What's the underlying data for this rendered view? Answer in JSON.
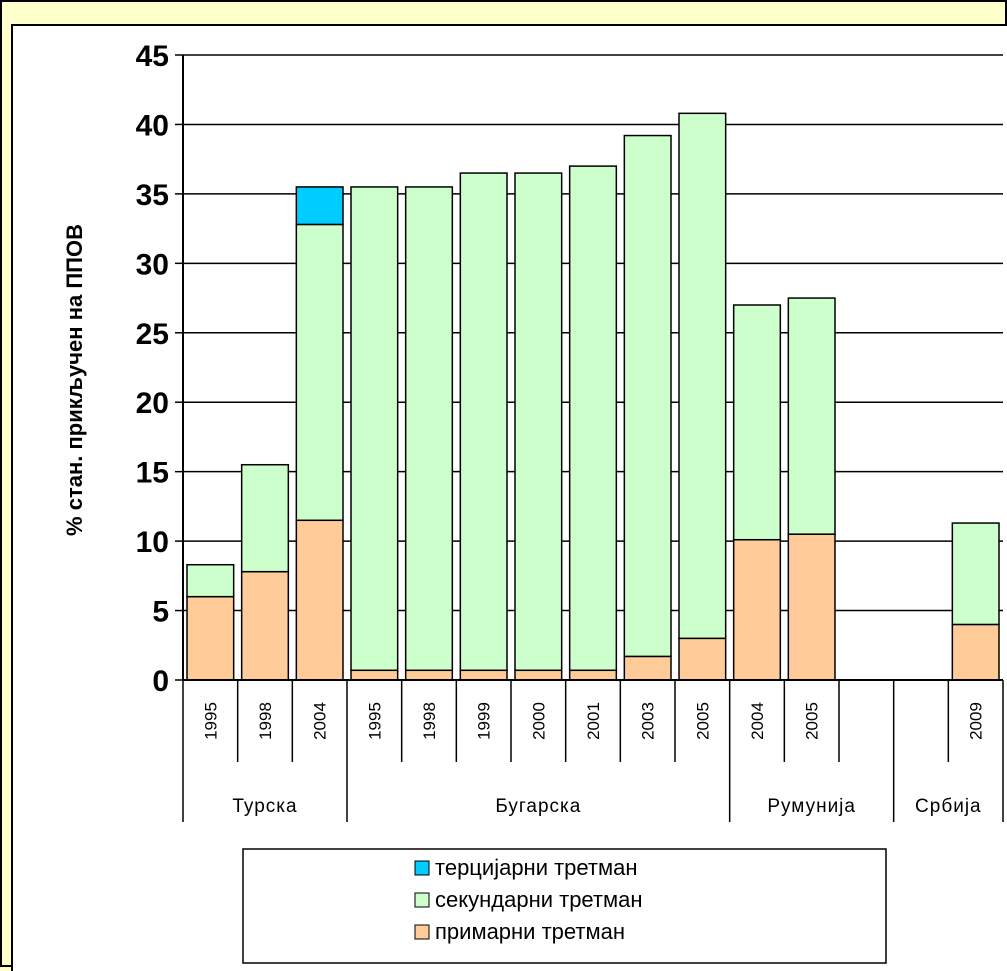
{
  "chart_data": {
    "type": "bar",
    "stacked": true,
    "ylabel": "% стан. прикључен на ППОВ",
    "ylim": [
      0,
      45
    ],
    "yticks": [
      0,
      5,
      10,
      15,
      20,
      25,
      30,
      35,
      40,
      45
    ],
    "grid": true,
    "legend_position": "bottom",
    "groups": [
      {
        "name": "Турска",
        "categories": [
          "1995",
          "1998",
          "2004"
        ]
      },
      {
        "name": "Бугарска",
        "categories": [
          "1995",
          "1998",
          "1999",
          "2000",
          "2001",
          "2003",
          "2005"
        ]
      },
      {
        "name": "Румунија",
        "categories": [
          "2004",
          "2005",
          ""
        ]
      },
      {
        "name": "Србија",
        "categories": [
          "",
          "2009"
        ]
      }
    ],
    "categories": [
      "1995",
      "1998",
      "2004",
      "1995",
      "1998",
      "1999",
      "2000",
      "2001",
      "2003",
      "2005",
      "2004",
      "2005",
      "",
      "",
      "2009"
    ],
    "series": [
      {
        "name": "примарни третман",
        "color": "#ffcc99",
        "values": [
          6,
          7.8,
          11.5,
          0.7,
          0.7,
          0.7,
          0.7,
          0.7,
          1.7,
          3,
          10.1,
          10.5,
          0,
          0,
          4
        ]
      },
      {
        "name": "секундарни третман",
        "color": "#ccffcc",
        "values": [
          2.3,
          7.7,
          21.3,
          34.8,
          34.8,
          35.8,
          35.8,
          36.3,
          37.5,
          37.8,
          16.9,
          17,
          0,
          0,
          7.3
        ]
      },
      {
        "name": "терцијарни третман",
        "color": "#00ccff",
        "values": [
          0,
          0,
          2.7,
          0,
          0,
          0,
          0,
          0,
          0,
          0,
          0,
          0,
          0,
          0,
          0
        ]
      }
    ],
    "legend_order": [
      "терцијарни третман",
      "секундарни третман",
      "примарни третман"
    ]
  }
}
